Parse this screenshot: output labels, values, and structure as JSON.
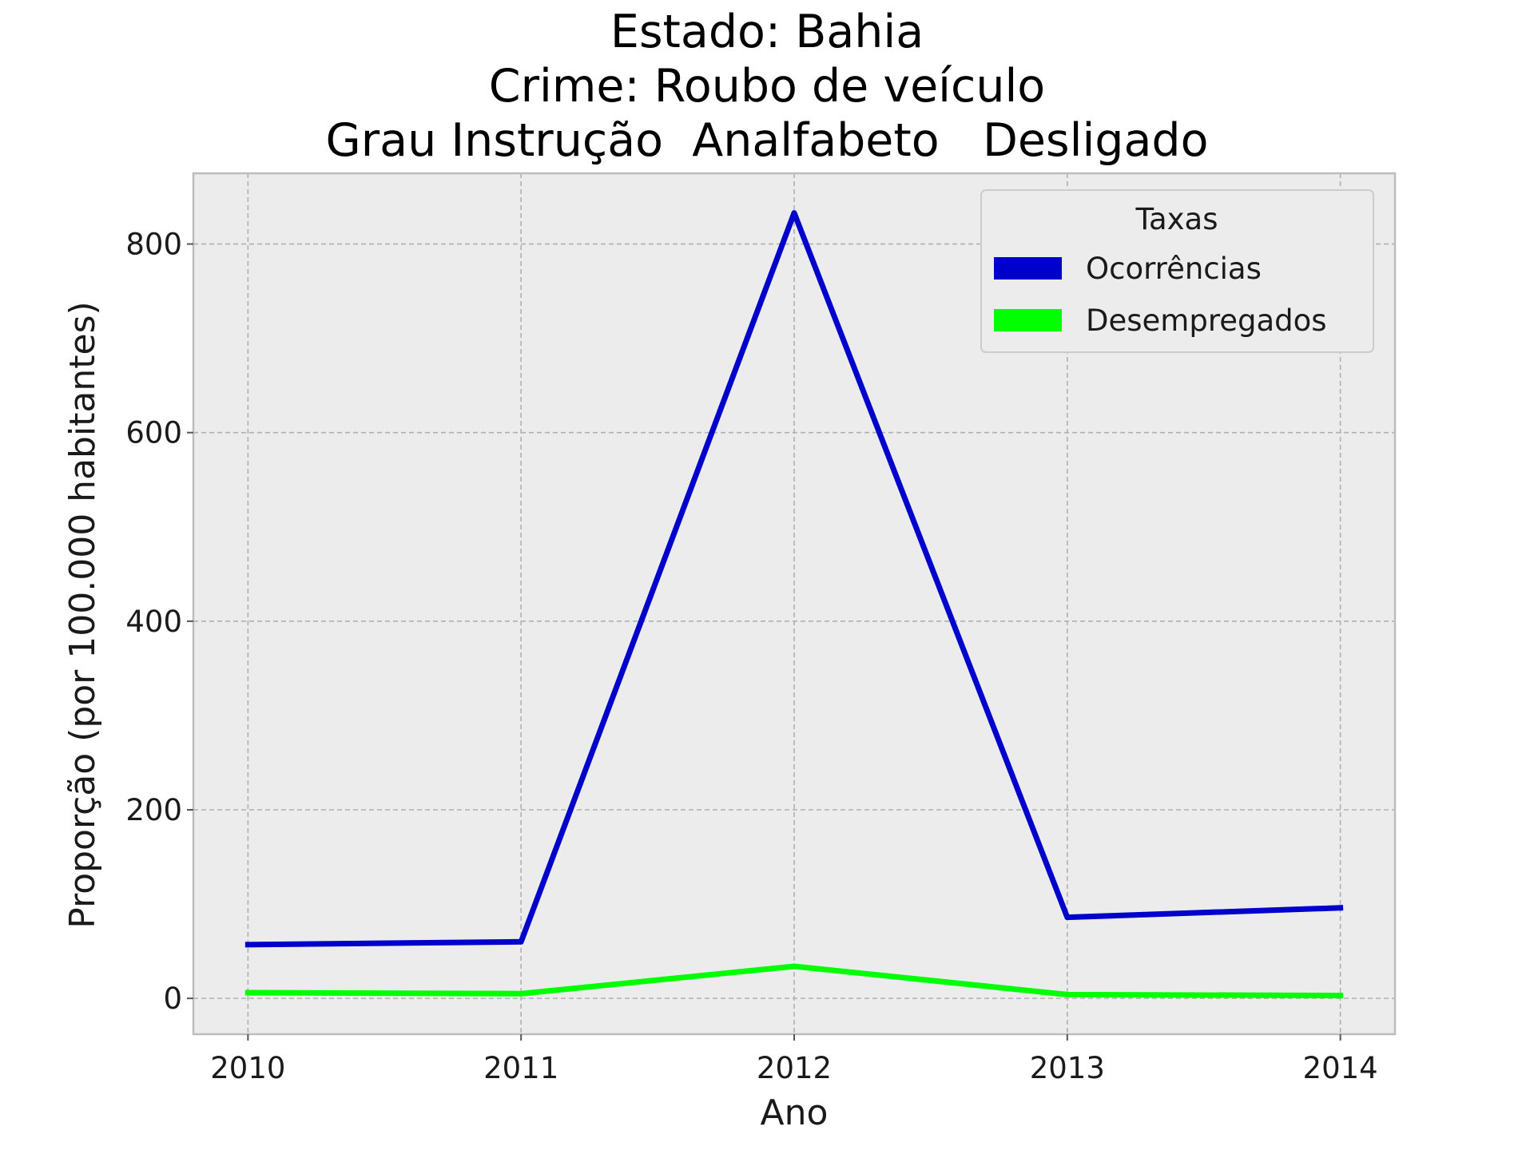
{
  "chart_data": {
    "type": "line",
    "title_lines": [
      "Estado: Bahia",
      "Crime: Roubo de veículo",
      "Grau Instrução  Analfabeto   Desligado"
    ],
    "xlabel": "Ano",
    "ylabel": "Proporção (por 100.000 habitantes)",
    "x": [
      2010,
      2011,
      2012,
      2013,
      2014
    ],
    "x_tick_labels": [
      "2010",
      "2011",
      "2012",
      "2013",
      "2014"
    ],
    "y_ticks": [
      0,
      200,
      400,
      600,
      800
    ],
    "y_tick_labels": [
      "0",
      "200",
      "400",
      "600",
      "800"
    ],
    "xlim": [
      2009.8,
      2014.2
    ],
    "ylim": [
      -38,
      875
    ],
    "grid": true,
    "background": "#ececec",
    "legend": {
      "title": "Taxas",
      "placement": "top-right"
    },
    "series": [
      {
        "name": "Ocorrências",
        "color": "#0000cc",
        "values": [
          57,
          60,
          833,
          86,
          96
        ]
      },
      {
        "name": "Desempregados",
        "color": "#00ff00",
        "values": [
          6,
          5,
          34,
          4,
          3
        ]
      }
    ]
  }
}
